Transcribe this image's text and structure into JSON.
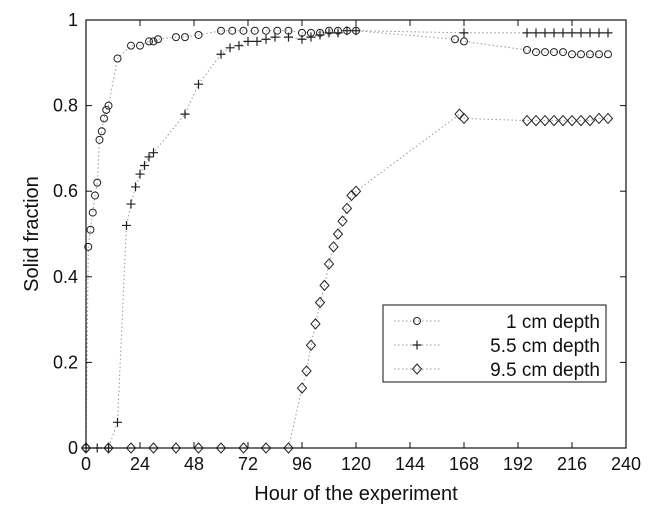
{
  "chart_data": {
    "type": "line",
    "title": "",
    "xlabel": "Hour of the experiment",
    "ylabel": "Solid fraction",
    "xlim": [
      0,
      240
    ],
    "ylim": [
      0,
      1
    ],
    "x_ticks": [
      0,
      24,
      48,
      72,
      96,
      120,
      144,
      168,
      192,
      216,
      240
    ],
    "y_ticks": [
      0,
      0.2,
      0.4,
      0.6,
      0.8,
      1
    ],
    "y_tick_labels": [
      "0",
      "0.2",
      "0.4",
      "0.6",
      "0.8",
      "1"
    ],
    "grid": false,
    "legend_position": "center-right",
    "line_style": "dotted",
    "colors": {
      "axis": "#111111",
      "marker": "#222222",
      "line": "#999999"
    },
    "series": [
      {
        "name": "1 cm depth",
        "marker": "circle",
        "x": [
          0,
          1,
          2,
          3,
          4,
          5,
          6,
          7,
          8,
          9,
          10,
          14,
          20,
          24,
          28,
          30,
          32,
          40,
          44,
          50,
          60,
          65,
          70,
          75,
          80,
          85,
          90,
          96,
          100,
          104,
          108,
          112,
          116,
          120,
          164,
          168,
          196,
          200,
          204,
          208,
          212,
          216,
          220,
          224,
          228,
          232
        ],
        "y": [
          0,
          0.47,
          0.51,
          0.55,
          0.59,
          0.62,
          0.72,
          0.74,
          0.77,
          0.79,
          0.8,
          0.91,
          0.94,
          0.94,
          0.95,
          0.95,
          0.955,
          0.96,
          0.96,
          0.965,
          0.975,
          0.975,
          0.975,
          0.975,
          0.975,
          0.975,
          0.975,
          0.97,
          0.97,
          0.97,
          0.975,
          0.975,
          0.975,
          0.975,
          0.955,
          0.95,
          0.93,
          0.925,
          0.925,
          0.925,
          0.925,
          0.92,
          0.92,
          0.92,
          0.92,
          0.92
        ]
      },
      {
        "name": "5.5 cm depth",
        "marker": "plus",
        "x": [
          0,
          5,
          10,
          14,
          18,
          20,
          22,
          24,
          26,
          28,
          30,
          44,
          50,
          60,
          64,
          68,
          72,
          76,
          80,
          84,
          90,
          96,
          100,
          104,
          108,
          112,
          116,
          120,
          168,
          196,
          200,
          204,
          208,
          212,
          216,
          220,
          224,
          228,
          232
        ],
        "y": [
          0,
          0,
          0,
          0.06,
          0.52,
          0.57,
          0.61,
          0.64,
          0.66,
          0.68,
          0.69,
          0.78,
          0.85,
          0.92,
          0.935,
          0.94,
          0.95,
          0.95,
          0.955,
          0.96,
          0.96,
          0.955,
          0.96,
          0.965,
          0.97,
          0.97,
          0.975,
          0.975,
          0.97,
          0.97,
          0.97,
          0.97,
          0.97,
          0.97,
          0.97,
          0.97,
          0.97,
          0.97,
          0.97
        ]
      },
      {
        "name": "9.5 cm depth",
        "marker": "diamond",
        "x": [
          0,
          10,
          20,
          30,
          40,
          50,
          60,
          70,
          80,
          90,
          96,
          98,
          100,
          102,
          104,
          106,
          108,
          110,
          112,
          114,
          116,
          118,
          120,
          166,
          168,
          196,
          200,
          204,
          208,
          212,
          216,
          220,
          224,
          228,
          232
        ],
        "y": [
          0,
          0,
          0,
          0,
          0,
          0,
          0,
          0,
          0,
          0,
          0.14,
          0.18,
          0.24,
          0.29,
          0.34,
          0.38,
          0.43,
          0.47,
          0.5,
          0.53,
          0.56,
          0.59,
          0.6,
          0.78,
          0.77,
          0.765,
          0.765,
          0.765,
          0.765,
          0.765,
          0.765,
          0.765,
          0.765,
          0.77,
          0.77
        ]
      }
    ]
  }
}
